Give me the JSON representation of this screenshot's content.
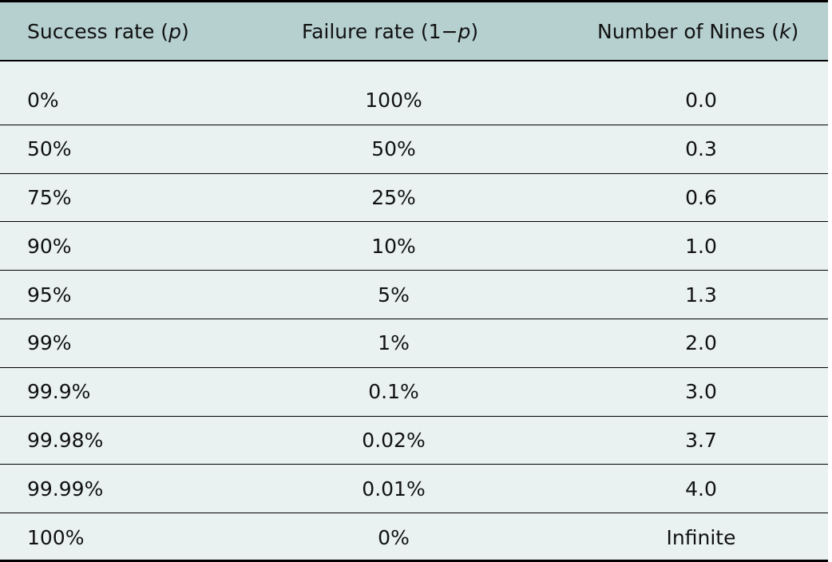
{
  "table": {
    "headers": [
      "Success rate (p)",
      "Failure rate (1−p)",
      "Number of Nines (k)"
    ],
    "rows": [
      [
        "0%",
        "100%",
        "0.0"
      ],
      [
        "50%",
        "50%",
        "0.3"
      ],
      [
        "75%",
        "25%",
        "0.6"
      ],
      [
        "90%",
        "10%",
        "1.0"
      ],
      [
        "95%",
        "5%",
        "1.3"
      ],
      [
        "99%",
        "1%",
        "2.0"
      ],
      [
        "99.9%",
        "0.1%",
        "3.0"
      ],
      [
        "99.98%",
        "0.02%",
        "3.7"
      ],
      [
        "99.99%",
        "0.01%",
        "4.0"
      ],
      [
        "100%",
        "0%",
        "Infinite"
      ]
    ]
  }
}
